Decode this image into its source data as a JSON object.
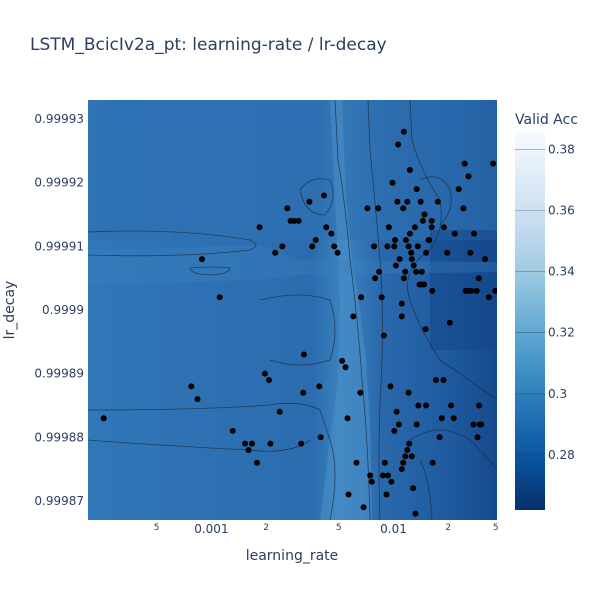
{
  "chart_data": {
    "type": "contour",
    "title": "LSTM_BcicIv2a_pt: learning-rate / lr-decay",
    "xlabel": "learning_rate",
    "ylabel": "lr_decay",
    "x_scale": "log",
    "xlim": [
      0.00021,
      0.037
    ],
    "ylim": [
      0.999867,
      0.999933
    ],
    "x_ticks_major": [
      "0.001",
      "0.01"
    ],
    "x_ticks_minor": [
      "5",
      "2",
      "5",
      "2",
      "5"
    ],
    "y_ticks": [
      "0.99993",
      "0.99992",
      "0.99991",
      "0.9999",
      "0.99989",
      "0.99988",
      "0.99987"
    ],
    "colorbar": {
      "title": "Valid Acc",
      "range": [
        0.262,
        0.386
      ],
      "ticks": [
        "0.38",
        "0.36",
        "0.34",
        "0.32",
        "0.3",
        "0.28"
      ]
    },
    "colors": {
      "low": "#08306b",
      "high": "#f7fbff",
      "plot_background": "#2b6cb0",
      "points": "#000000"
    },
    "points": [
      [
        0.000256,
        0.999883
      ],
      [
        0.000775,
        0.999888
      ],
      [
        0.000839,
        0.999886
      ],
      [
        0.000888,
        0.999908
      ],
      [
        0.00111,
        0.999902
      ],
      [
        0.00131,
        0.999881
      ],
      [
        0.00153,
        0.999879
      ],
      [
        0.0016,
        0.999878
      ],
      [
        0.00167,
        0.999879
      ],
      [
        0.00178,
        0.999876
      ],
      [
        0.00184,
        0.999913
      ],
      [
        0.00197,
        0.99989
      ],
      [
        0.00207,
        0.999889
      ],
      [
        0.00211,
        0.999879
      ],
      [
        0.00224,
        0.999909
      ],
      [
        0.00237,
        0.999884
      ],
      [
        0.00245,
        0.99991
      ],
      [
        0.00261,
        0.999916
      ],
      [
        0.00272,
        0.999914
      ],
      [
        0.00285,
        0.999914
      ],
      [
        0.00301,
        0.999914
      ],
      [
        0.00311,
        0.999879
      ],
      [
        0.00319,
        0.999887
      ],
      [
        0.00322,
        0.999893
      ],
      [
        0.00345,
        0.999917
      ],
      [
        0.00358,
        0.99991
      ],
      [
        0.00374,
        0.999911
      ],
      [
        0.00391,
        0.999888
      ],
      [
        0.00398,
        0.99988
      ],
      [
        0.00415,
        0.999918
      ],
      [
        0.00427,
        0.999913
      ],
      [
        0.00455,
        0.999912
      ],
      [
        0.00472,
        0.99991
      ],
      [
        0.00493,
        0.999909
      ],
      [
        0.00522,
        0.999892
      ],
      [
        0.00545,
        0.999891
      ],
      [
        0.00559,
        0.999883
      ],
      [
        0.00566,
        0.999871
      ],
      [
        0.00601,
        0.999899
      ],
      [
        0.00626,
        0.999876
      ],
      [
        0.00658,
        0.999887
      ],
      [
        0.00664,
        0.999902
      ],
      [
        0.00685,
        0.999869
      ],
      [
        0.00719,
        0.999916
      ],
      [
        0.00745,
        0.999874
      ],
      [
        0.0076,
        0.999873
      ],
      [
        0.00781,
        0.99991
      ],
      [
        0.00792,
        0.999905
      ],
      [
        0.00824,
        0.999916
      ],
      [
        0.00833,
        0.999906
      ],
      [
        0.00861,
        0.999902
      ],
      [
        0.00885,
        0.999896
      ],
      [
        0.00925,
        0.99991
      ],
      [
        0.00943,
        0.999913
      ],
      [
        0.00962,
        0.999888
      ],
      [
        0.00987,
        0.99992
      ],
      [
        0.0101,
        0.99991
      ],
      [
        0.0103,
        0.999907
      ],
      [
        0.0106,
        0.999926
      ],
      [
        0.0111,
        0.999899
      ],
      [
        0.0114,
        0.999905
      ],
      [
        0.0117,
        0.999911
      ],
      [
        0.0121,
        0.999887
      ],
      [
        0.0126,
        0.999908
      ],
      [
        0.0131,
        0.999913
      ],
      [
        0.0137,
        0.999885
      ],
      [
        0.0143,
        0.999906
      ],
      [
        0.015,
        0.999897
      ],
      [
        0.0156,
        0.999911
      ],
      [
        0.0163,
        0.999903
      ],
      [
        0.0171,
        0.999889
      ],
      [
        0.0179,
        0.99988
      ],
      [
        0.0189,
        0.999913
      ],
      [
        0.0197,
        0.999909
      ],
      [
        0.0204,
        0.999898
      ],
      [
        0.0217,
        0.999912
      ],
      [
        0.0228,
        0.999919
      ],
      [
        0.0242,
        0.999916
      ],
      [
        0.0253,
        0.999903
      ],
      [
        0.0264,
        0.999909
      ],
      [
        0.0277,
        0.999912
      ],
      [
        0.0289,
        0.99988
      ],
      [
        0.0303,
        0.999882
      ],
      [
        0.0318,
        0.999908
      ],
      [
        0.0334,
        0.999902
      ],
      [
        0.0352,
        0.999923
      ],
      [
        0.0111,
        0.999901
      ],
      [
        0.0114,
        0.999928
      ],
      [
        0.0123,
        0.999922
      ],
      [
        0.0134,
        0.999919
      ],
      [
        0.0148,
        0.999915
      ],
      [
        0.0101,
        0.999881
      ],
      [
        0.0107,
        0.999882
      ],
      [
        0.0111,
        0.999875
      ],
      [
        0.0113,
        0.999876
      ],
      [
        0.0116,
        0.999877
      ],
      [
        0.0119,
        0.999878
      ],
      [
        0.0122,
        0.999879
      ],
      [
        0.0126,
        0.999877
      ],
      [
        0.0128,
        0.999872
      ],
      [
        0.0132,
        0.999868
      ],
      [
        0.0104,
        0.999884
      ],
      [
        0.00973,
        0.999873
      ],
      [
        0.00933,
        0.999874
      ],
      [
        0.00915,
        0.999871
      ],
      [
        0.00895,
        0.999876
      ],
      [
        0.00875,
        0.999874
      ],
      [
        0.0121,
        0.99991
      ],
      [
        0.0123,
        0.999912
      ],
      [
        0.0125,
        0.999909
      ],
      [
        0.0129,
        0.999907
      ],
      [
        0.0133,
        0.999906
      ],
      [
        0.0136,
        0.99991
      ],
      [
        0.0139,
        0.999904
      ],
      [
        0.0143,
        0.999904
      ],
      [
        0.0147,
        0.999904
      ],
      [
        0.0151,
        0.999909
      ],
      [
        0.0157,
        0.999911
      ],
      [
        0.0162,
        0.999914
      ],
      [
        0.0102,
        0.999911
      ],
      [
        0.0105,
        0.999917
      ],
      [
        0.0108,
        0.999908
      ],
      [
        0.0113,
        0.999916
      ],
      [
        0.0116,
        0.999906
      ],
      [
        0.0119,
        0.999917
      ],
      [
        0.0141,
        0.999917
      ],
      [
        0.0145,
        0.999914
      ],
      [
        0.0162,
        0.999913
      ],
      [
        0.0175,
        0.999917
      ],
      [
        0.0267,
        0.999903
      ],
      [
        0.0258,
        0.999903
      ],
      [
        0.0249,
        0.999903
      ],
      [
        0.0294,
        0.999905
      ],
      [
        0.0286,
        0.999903
      ],
      [
        0.0362,
        0.999903
      ],
      [
        0.0397,
        0.999901
      ],
      [
        0.0437,
        0.999887
      ],
      [
        0.0451,
        0.999874
      ],
      [
        0.0455,
        0.999873
      ],
      [
        0.0295,
        0.999885
      ],
      [
        0.0298,
        0.999882
      ],
      [
        0.0246,
        0.999923
      ],
      [
        0.0258,
        0.999921
      ],
      [
        0.0275,
        0.999882
      ],
      [
        0.0184,
        0.999883
      ],
      [
        0.0188,
        0.999889
      ],
      [
        0.0207,
        0.999885
      ],
      [
        0.0214,
        0.999883
      ],
      [
        0.0151,
        0.999885
      ],
      [
        0.0134,
        0.999882
      ],
      [
        0.0164,
        0.999876
      ]
    ]
  }
}
